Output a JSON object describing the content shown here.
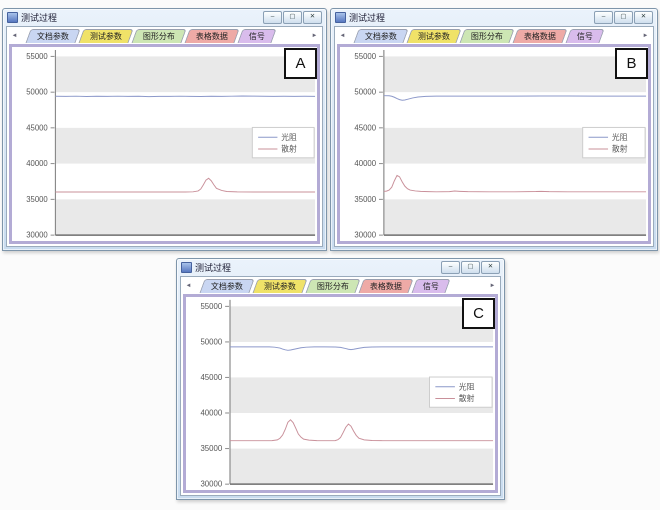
{
  "window_title": "测试过程",
  "window_buttons": {
    "minimize": "–",
    "maximize": "▢",
    "close": "✕"
  },
  "tab_arrows": {
    "left": "◄",
    "right": "►"
  },
  "tabs": [
    {
      "label": "文档参数",
      "color": "#c9d6f2"
    },
    {
      "label": "测试参数",
      "color": "#f0e268"
    },
    {
      "label": "图形分布",
      "color": "#cde6b4"
    },
    {
      "label": "表格数据",
      "color": "#eeaaa6"
    },
    {
      "label": "信号",
      "color": "#d9bcec"
    }
  ],
  "windows": [
    {
      "label": "A"
    },
    {
      "label": "B"
    },
    {
      "label": "C"
    }
  ],
  "colors": {
    "band": "#e9e9e9",
    "axis": "#8a8a8a",
    "baseline": "#6e6e6e",
    "tick_text": "#555555",
    "legend_border": "#cccccc",
    "photoresist_line": "#8c98c9",
    "scatter_line": "#c9909a"
  },
  "chart_data": [
    {
      "type": "line",
      "window": "A",
      "ylim": [
        30000,
        55900
      ],
      "yticks": [
        30000,
        35000,
        40000,
        45000,
        50000,
        55000
      ],
      "shaded_bands": [
        [
          30000,
          35000
        ],
        [
          40000,
          45000
        ],
        [
          50000,
          55000
        ]
      ],
      "x_range_percent": [
        0,
        100
      ],
      "grid": false,
      "legend": {
        "position": "right-middle",
        "items": [
          "光阻",
          "散射"
        ]
      },
      "series": [
        {
          "name": "光阻",
          "color": "#8c98c9",
          "points": [
            [
              0,
              49420
            ],
            [
              4,
              49400
            ],
            [
              8,
              49430
            ],
            [
              12,
              49390
            ],
            [
              16,
              49420
            ],
            [
              20,
              49400
            ],
            [
              24,
              49430
            ],
            [
              28,
              49400
            ],
            [
              32,
              49420
            ],
            [
              36,
              49380
            ],
            [
              40,
              49410
            ],
            [
              44,
              49400
            ],
            [
              48,
              49430
            ],
            [
              52,
              49410
            ],
            [
              56,
              49390
            ],
            [
              60,
              49420
            ],
            [
              64,
              49400
            ],
            [
              68,
              49430
            ],
            [
              72,
              49460
            ],
            [
              76,
              49440
            ],
            [
              80,
              49420
            ],
            [
              84,
              49400
            ],
            [
              88,
              49420
            ],
            [
              92,
              49400
            ],
            [
              96,
              49420
            ],
            [
              100,
              49410
            ]
          ]
        },
        {
          "name": "散射",
          "color": "#c9909a",
          "points": [
            [
              0,
              36030
            ],
            [
              20,
              36030
            ],
            [
              40,
              36030
            ],
            [
              50,
              36030
            ],
            [
              53,
              36060
            ],
            [
              55,
              36180
            ],
            [
              56,
              36450
            ],
            [
              57,
              37050
            ],
            [
              58,
              37700
            ],
            [
              59,
              37950
            ],
            [
              60,
              37600
            ],
            [
              61,
              37050
            ],
            [
              62,
              36550
            ],
            [
              64,
              36250
            ],
            [
              66,
              36100
            ],
            [
              70,
              36040
            ],
            [
              80,
              36030
            ],
            [
              90,
              36030
            ],
            [
              100,
              36030
            ]
          ]
        }
      ]
    },
    {
      "type": "line",
      "window": "B",
      "ylim": [
        30000,
        55900
      ],
      "yticks": [
        30000,
        35000,
        40000,
        45000,
        50000,
        55000
      ],
      "shaded_bands": [
        [
          30000,
          35000
        ],
        [
          40000,
          45000
        ],
        [
          50000,
          55000
        ]
      ],
      "x_range_percent": [
        0,
        100
      ],
      "grid": false,
      "legend": {
        "position": "right-middle",
        "items": [
          "光阻",
          "散射"
        ]
      },
      "series": [
        {
          "name": "光阻",
          "color": "#8c98c9",
          "points": [
            [
              0,
              49500
            ],
            [
              2,
              49480
            ],
            [
              3,
              49420
            ],
            [
              4,
              49280
            ],
            [
              5,
              49100
            ],
            [
              6,
              48950
            ],
            [
              7,
              48870
            ],
            [
              8,
              48900
            ],
            [
              9,
              49000
            ],
            [
              11,
              49180
            ],
            [
              13,
              49320
            ],
            [
              16,
              49400
            ],
            [
              20,
              49440
            ],
            [
              30,
              49450
            ],
            [
              40,
              49440
            ],
            [
              50,
              49450
            ],
            [
              60,
              49460
            ],
            [
              70,
              49460
            ],
            [
              80,
              49450
            ],
            [
              90,
              49450
            ],
            [
              100,
              49450
            ]
          ]
        },
        {
          "name": "散射",
          "color": "#c9909a",
          "points": [
            [
              0,
              36120
            ],
            [
              1,
              36150
            ],
            [
              2,
              36300
            ],
            [
              3,
              36700
            ],
            [
              4,
              37600
            ],
            [
              5,
              38350
            ],
            [
              6,
              38150
            ],
            [
              7,
              37450
            ],
            [
              8,
              36850
            ],
            [
              9,
              36500
            ],
            [
              10,
              36300
            ],
            [
              12,
              36180
            ],
            [
              14,
              36120
            ],
            [
              17,
              36080
            ],
            [
              20,
              36060
            ],
            [
              25,
              36080
            ],
            [
              27,
              36160
            ],
            [
              29,
              36120
            ],
            [
              32,
              36080
            ],
            [
              40,
              36060
            ],
            [
              50,
              36060
            ],
            [
              58,
              36100
            ],
            [
              60,
              36120
            ],
            [
              63,
              36080
            ],
            [
              70,
              36060
            ],
            [
              80,
              36060
            ],
            [
              90,
              36060
            ],
            [
              100,
              36060
            ]
          ]
        }
      ]
    },
    {
      "type": "line",
      "window": "C",
      "ylim": [
        30000,
        55900
      ],
      "yticks": [
        30000,
        35000,
        40000,
        45000,
        50000,
        55000
      ],
      "shaded_bands": [
        [
          30000,
          35000
        ],
        [
          40000,
          45000
        ],
        [
          50000,
          55000
        ]
      ],
      "x_range_percent": [
        0,
        100
      ],
      "grid": false,
      "legend": {
        "position": "right-middle",
        "items": [
          "光阻",
          "散射"
        ]
      },
      "series": [
        {
          "name": "光阻",
          "color": "#8c98c9",
          "points": [
            [
              0,
              49290
            ],
            [
              5,
              49300
            ],
            [
              10,
              49290
            ],
            [
              15,
              49290
            ],
            [
              17,
              49260
            ],
            [
              19,
              49130
            ],
            [
              20,
              49000
            ],
            [
              21,
              48880
            ],
            [
              22,
              48820
            ],
            [
              23,
              48860
            ],
            [
              25,
              49020
            ],
            [
              27,
              49170
            ],
            [
              29,
              49260
            ],
            [
              32,
              49290
            ],
            [
              36,
              49290
            ],
            [
              40,
              49280
            ],
            [
              42,
              49220
            ],
            [
              44,
              49060
            ],
            [
              45,
              48960
            ],
            [
              46,
              48910
            ],
            [
              47,
              48960
            ],
            [
              49,
              49100
            ],
            [
              51,
              49220
            ],
            [
              54,
              49280
            ],
            [
              58,
              49290
            ],
            [
              65,
              49290
            ],
            [
              75,
              49300
            ],
            [
              85,
              49290
            ],
            [
              100,
              49290
            ]
          ]
        },
        {
          "name": "散射",
          "color": "#c9909a",
          "points": [
            [
              0,
              36110
            ],
            [
              8,
              36110
            ],
            [
              14,
              36110
            ],
            [
              16,
              36130
            ],
            [
              18,
              36220
            ],
            [
              19,
              36450
            ],
            [
              20,
              36900
            ],
            [
              21,
              37700
            ],
            [
              22,
              38700
            ],
            [
              23,
              39050
            ],
            [
              24,
              38650
            ],
            [
              25,
              37850
            ],
            [
              26,
              37050
            ],
            [
              27,
              36600
            ],
            [
              28,
              36330
            ],
            [
              30,
              36190
            ],
            [
              33,
              36130
            ],
            [
              37,
              36110
            ],
            [
              40,
              36130
            ],
            [
              41,
              36250
            ],
            [
              42,
              36550
            ],
            [
              43,
              37250
            ],
            [
              44,
              38000
            ],
            [
              45,
              38450
            ],
            [
              46,
              38150
            ],
            [
              47,
              37450
            ],
            [
              48,
              36850
            ],
            [
              49,
              36450
            ],
            [
              51,
              36220
            ],
            [
              54,
              36140
            ],
            [
              58,
              36110
            ],
            [
              65,
              36110
            ],
            [
              75,
              36110
            ],
            [
              85,
              36110
            ],
            [
              100,
              36110
            ]
          ]
        }
      ]
    }
  ]
}
